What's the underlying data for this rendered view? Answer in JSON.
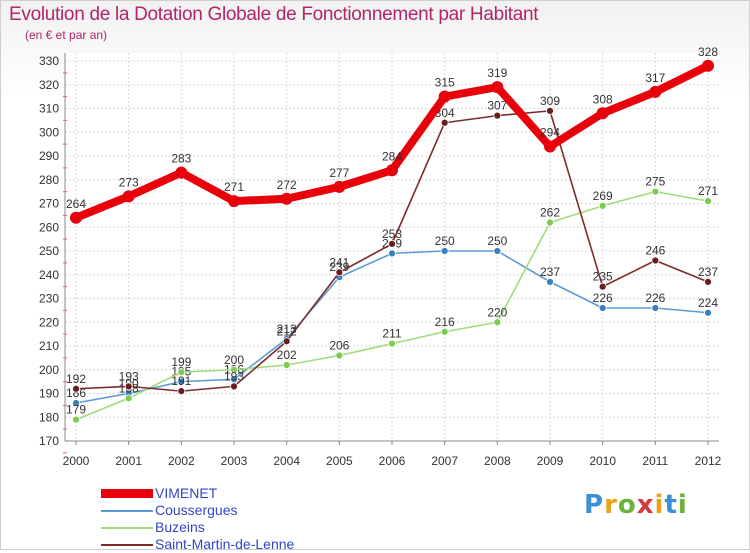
{
  "header": {
    "title": "Evolution de la Dotation Globale de Fonctionnement par Habitant",
    "subtitle": "(en € et par an)"
  },
  "chart_data": {
    "type": "line",
    "title": "Evolution de la Dotation Globale de Fonctionnement par Habitant",
    "subtitle": "(en € et par an)",
    "xlabel": "",
    "ylabel": "",
    "ylim": [
      170,
      330
    ],
    "ytick_step": 10,
    "grid": true,
    "categories": [
      "2000",
      "2001",
      "2002",
      "2003",
      "2004",
      "2005",
      "2006",
      "2007",
      "2008",
      "2009",
      "2010",
      "2011",
      "2012"
    ],
    "series": [
      {
        "name": "VIMENET",
        "color": "#e8000b",
        "dot": "#e8000b",
        "bold": true,
        "values": [
          264,
          273,
          283,
          271,
          272,
          277,
          284,
          315,
          319,
          294,
          308,
          317,
          328
        ]
      },
      {
        "name": "Coussergues",
        "color": "#5b9bd5",
        "dot": "#3a7fc0",
        "bold": false,
        "values": [
          186,
          190,
          195,
          196,
          213,
          239,
          249,
          250,
          250,
          237,
          226,
          226,
          224
        ]
      },
      {
        "name": "Buzeins",
        "color": "#9fdc7a",
        "dot": "#7ccc4e",
        "bold": false,
        "values": [
          179,
          188,
          199,
          200,
          202,
          206,
          211,
          216,
          220,
          262,
          269,
          275,
          271
        ]
      },
      {
        "name": "Saint-Martin-de-Lenne",
        "color": "#7b2c2c",
        "dot": "#6a1c1c",
        "bold": false,
        "values": [
          192,
          193,
          191,
          193,
          212,
          241,
          253,
          304,
          307,
          309,
          235,
          246,
          237
        ]
      }
    ],
    "legend_position": "bottom-left"
  },
  "logo": {
    "letters": [
      "P",
      "r",
      "o",
      "x",
      "i",
      "t",
      "i"
    ]
  }
}
